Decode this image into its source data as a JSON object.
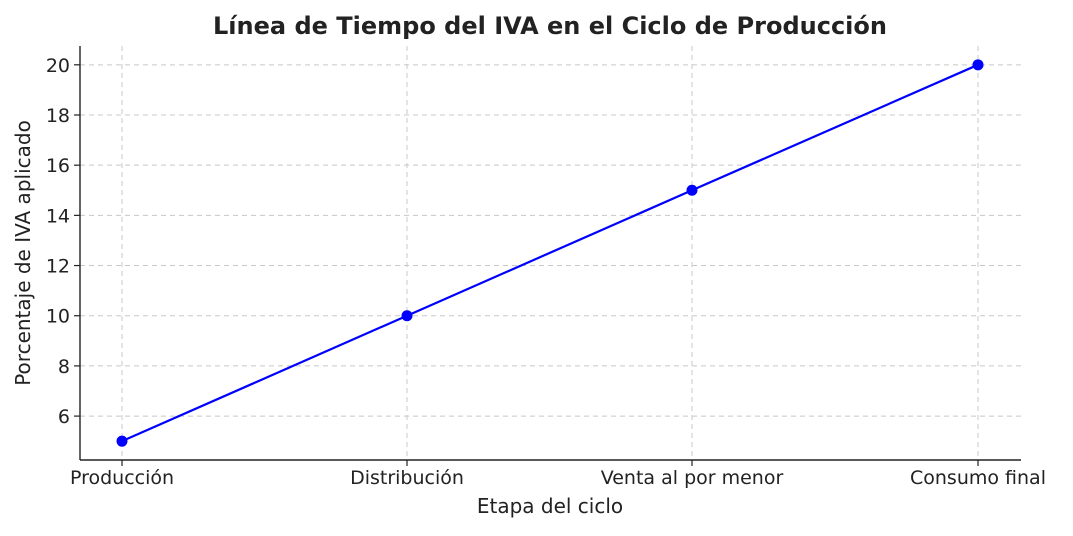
{
  "chart_data": {
    "type": "line",
    "title": "Línea de Tiempo del IVA en el Ciclo de Producción",
    "xlabel": "Etapa del ciclo",
    "ylabel": "Porcentaje de IVA aplicado",
    "categories": [
      "Producción",
      "Distribución",
      "Venta al por menor",
      "Consumo final"
    ],
    "series": [
      {
        "values": [
          5,
          10,
          15,
          20
        ]
      }
    ],
    "yticks": [
      6,
      8,
      10,
      12,
      14,
      16,
      18,
      20
    ],
    "ylim": [
      4.25,
      20.75
    ],
    "grid": true,
    "line_color": "#0000ff",
    "marker": "circle",
    "legend": "none"
  }
}
